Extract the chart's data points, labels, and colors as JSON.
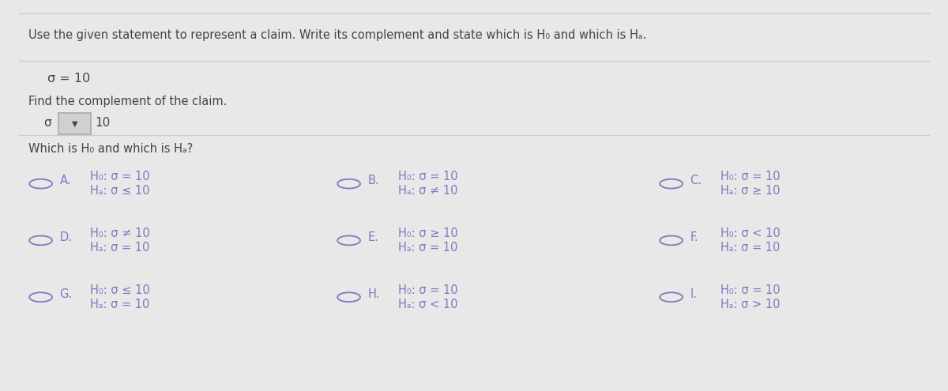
{
  "title_line": "Use the given statement to represent a claim. Write its complement and state which is H₀ and which is Hₐ.",
  "claim": "σ = 10",
  "complement_label": "Find the complement of the claim.",
  "complement_box_text": "σ",
  "complement_value": "10",
  "which_label": "Which is H₀ and which is Hₐ?",
  "options": [
    {
      "letter": "A",
      "line1": "H₀: σ = 10",
      "line2": "Hₐ: σ ≤ 10"
    },
    {
      "letter": "B",
      "line1": "H₀: σ = 10",
      "line2": "Hₐ: σ ≠ 10"
    },
    {
      "letter": "C",
      "line1": "H₀: σ = 10",
      "line2": "Hₐ: σ ≥ 10"
    },
    {
      "letter": "D",
      "line1": "H₀: σ ≠ 10",
      "line2": "Hₐ: σ = 10"
    },
    {
      "letter": "E",
      "line1": "H₀: σ ≥ 10",
      "line2": "Hₐ: σ = 10"
    },
    {
      "letter": "F",
      "line1": "H₀: σ < 10",
      "line2": "Hₐ: σ = 10"
    },
    {
      "letter": "G",
      "line1": "H₀: σ ≤ 10",
      "line2": "Hₐ: σ = 10"
    },
    {
      "letter": "H",
      "line1": "H₀: σ = 10",
      "line2": "Hₐ: σ < 10"
    },
    {
      "letter": "I",
      "line1": "H₀: σ = 10",
      "line2": "Hₐ: σ > 10"
    }
  ],
  "bg_color": "#e8e8e8",
  "text_color": "#444444",
  "option_color": "#7b7bbf",
  "circle_color": "#7b7bbf",
  "line_color": "#cccccc",
  "dropdown_bg": "#d0d0d0",
  "dropdown_border": "#aaaaaa"
}
